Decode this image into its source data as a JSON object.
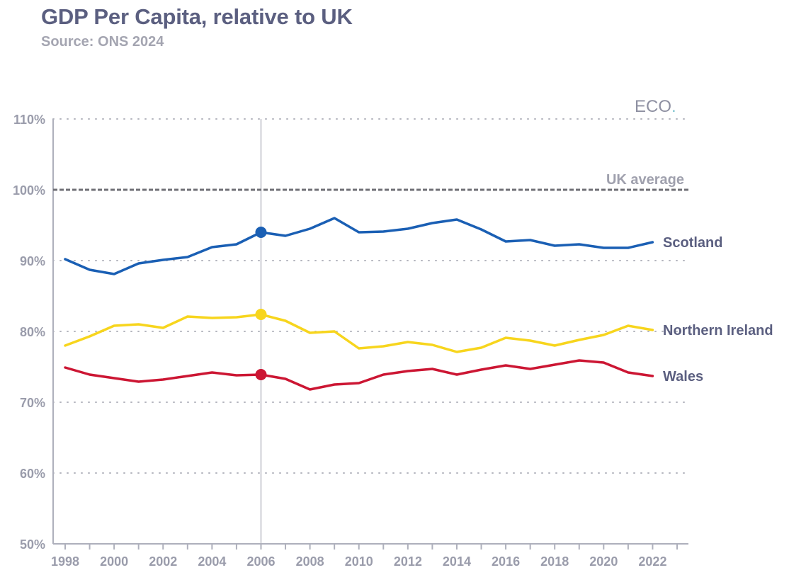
{
  "header": {
    "title": "GDP Per Capita, relative to UK",
    "subtitle": "Source: ONS 2024"
  },
  "brand": {
    "text": "ECO",
    "dot": ".",
    "dot_color": "#7fc4cf"
  },
  "chart_data": {
    "type": "line",
    "title": "GDP Per Capita, relative to UK",
    "subtitle": "Source: ONS 2024",
    "xlabel": "",
    "ylabel": "",
    "x": [
      1998,
      1999,
      2000,
      2001,
      2002,
      2003,
      2004,
      2005,
      2006,
      2007,
      2008,
      2009,
      2010,
      2011,
      2012,
      2013,
      2014,
      2015,
      2016,
      2017,
      2018,
      2019,
      2020,
      2021,
      2022
    ],
    "xlim": [
      1998,
      2023
    ],
    "x_tick_labels": [
      "1998",
      "2000",
      "2002",
      "2004",
      "2006",
      "2008",
      "2010",
      "2012",
      "2014",
      "2016",
      "2018",
      "2020",
      "2022"
    ],
    "ylim": [
      50,
      110
    ],
    "y_tick_labels": [
      "50%",
      "60%",
      "70%",
      "80%",
      "90%",
      "100%",
      "110%"
    ],
    "grid": "horizontal dotted",
    "series": [
      {
        "name": "Scotland",
        "color": "#1a5fb4",
        "values": [
          90.2,
          88.7,
          88.1,
          89.6,
          90.1,
          90.5,
          91.9,
          92.3,
          94.0,
          93.5,
          94.5,
          96.0,
          94.0,
          94.1,
          94.5,
          95.3,
          95.8,
          94.4,
          92.7,
          92.9,
          92.1,
          92.3,
          91.8,
          91.8,
          92.6
        ]
      },
      {
        "name": "Northern Ireland",
        "color": "#f7d51d",
        "values": [
          78.0,
          79.3,
          80.8,
          81.0,
          80.5,
          82.1,
          81.9,
          82.0,
          82.4,
          81.5,
          79.8,
          80.0,
          77.6,
          77.9,
          78.5,
          78.1,
          77.1,
          77.7,
          79.1,
          78.7,
          78.0,
          78.8,
          79.5,
          80.8,
          80.2
        ]
      },
      {
        "name": "Wales",
        "color": "#cc1633",
        "values": [
          74.9,
          73.9,
          73.4,
          72.9,
          73.2,
          73.7,
          74.2,
          73.8,
          73.9,
          73.3,
          71.8,
          72.5,
          72.7,
          73.9,
          74.4,
          74.7,
          73.9,
          74.6,
          75.2,
          74.7,
          75.3,
          75.9,
          75.6,
          74.2,
          73.7
        ]
      }
    ],
    "reference_line": {
      "label": "UK average",
      "value": 100,
      "color": "#6f6f75"
    },
    "highlight_year": 2006
  }
}
